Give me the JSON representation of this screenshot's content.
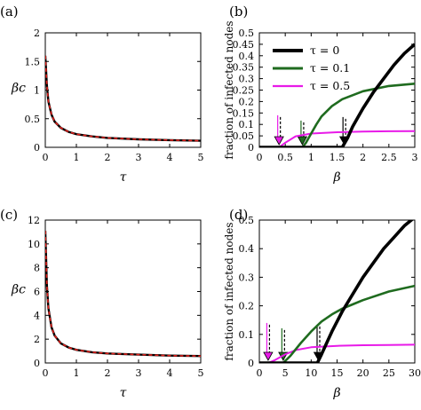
{
  "chart_data": [
    {
      "panel": "(a)",
      "type": "line",
      "xlabel": "τ",
      "ylabel": "βc",
      "xlim": [
        0,
        5
      ],
      "ylim": [
        0,
        2
      ],
      "xticks": [
        "0",
        "1",
        "2",
        "3",
        "4",
        "5"
      ],
      "yticks": [
        "0",
        "0.5",
        "1",
        "1.5",
        "2"
      ],
      "grid": false,
      "series": [
        {
          "style": "black-solid",
          "x": [
            0,
            0.05,
            0.1,
            0.2,
            0.3,
            0.5,
            0.75,
            1,
            1.5,
            2,
            3,
            4,
            5
          ],
          "y": [
            1.6,
            1.08,
            0.8,
            0.57,
            0.45,
            0.34,
            0.27,
            0.23,
            0.19,
            0.165,
            0.14,
            0.125,
            0.115
          ]
        },
        {
          "style": "red-dashed",
          "x": [
            0,
            0.05,
            0.1,
            0.2,
            0.3,
            0.5,
            0.75,
            1,
            1.5,
            2,
            3,
            4,
            5
          ],
          "y": [
            1.6,
            1.08,
            0.8,
            0.57,
            0.45,
            0.34,
            0.27,
            0.23,
            0.19,
            0.165,
            0.14,
            0.125,
            0.115
          ]
        }
      ]
    },
    {
      "panel": "(b)",
      "type": "line",
      "xlabel": "β",
      "ylabel": "fraction of infected nodes",
      "xlim": [
        0,
        3
      ],
      "ylim": [
        0,
        0.5
      ],
      "xticks": [
        "0",
        "0.5",
        "1",
        "1.5",
        "2",
        "2.5",
        "3"
      ],
      "yticks": [
        "0",
        "0.05",
        "0.1",
        "0.15",
        "0.2",
        "0.25",
        "0.3",
        "0.35",
        "0.4",
        "0.45",
        "0.5"
      ],
      "legend_position": "top-left",
      "series": [
        {
          "name": "τ = 0",
          "color": "#000000",
          "x": [
            0,
            1.6,
            1.7,
            1.8,
            1.9,
            2.0,
            2.2,
            2.4,
            2.6,
            2.8,
            3.0
          ],
          "y": [
            0,
            0,
            0.04,
            0.09,
            0.13,
            0.17,
            0.24,
            0.3,
            0.36,
            0.41,
            0.45
          ],
          "threshold": 1.64
        },
        {
          "name": "τ = 0.1",
          "color": "#1f6b1f",
          "x": [
            0,
            0.83,
            0.9,
            1.0,
            1.1,
            1.2,
            1.4,
            1.6,
            2.0,
            2.5,
            3.0
          ],
          "y": [
            0,
            0,
            0.02,
            0.06,
            0.1,
            0.135,
            0.18,
            0.21,
            0.245,
            0.268,
            0.278
          ],
          "threshold": 0.83
        },
        {
          "name": "τ = 0.5",
          "color": "#e81ae8",
          "x": [
            0,
            0.38,
            0.5,
            0.7,
            1.0,
            1.5,
            2.0,
            2.5,
            3.0
          ],
          "y": [
            0,
            0,
            0.02,
            0.048,
            0.06,
            0.066,
            0.069,
            0.07,
            0.071
          ],
          "threshold": 0.38
        }
      ]
    },
    {
      "panel": "(c)",
      "type": "line",
      "xlabel": "τ",
      "ylabel": "βc",
      "xlim": [
        0,
        5
      ],
      "ylim": [
        0,
        12
      ],
      "xticks": [
        "0",
        "1",
        "2",
        "3",
        "4",
        "5"
      ],
      "yticks": [
        "0",
        "2",
        "4",
        "6",
        "8",
        "10",
        "12"
      ],
      "grid": false,
      "series": [
        {
          "style": "black-solid",
          "x": [
            0,
            0.05,
            0.1,
            0.2,
            0.3,
            0.5,
            0.75,
            1,
            1.5,
            2,
            3,
            4,
            5
          ],
          "y": [
            11.1,
            6.5,
            4.6,
            3.0,
            2.3,
            1.65,
            1.3,
            1.1,
            0.9,
            0.8,
            0.7,
            0.62,
            0.58
          ]
        },
        {
          "style": "red-dashed",
          "x": [
            0,
            0.05,
            0.1,
            0.2,
            0.3,
            0.5,
            0.75,
            1,
            1.5,
            2,
            3,
            4,
            5
          ],
          "y": [
            11.1,
            6.5,
            4.6,
            3.0,
            2.3,
            1.65,
            1.3,
            1.1,
            0.9,
            0.8,
            0.7,
            0.62,
            0.58
          ]
        }
      ]
    },
    {
      "panel": "(d)",
      "type": "line",
      "xlabel": "β",
      "ylabel": "fraction of infected nodes",
      "xlim": [
        0,
        30
      ],
      "ylim": [
        0,
        0.5
      ],
      "xticks": [
        "0",
        "5",
        "10",
        "15",
        "20",
        "25",
        "30"
      ],
      "yticks": [
        "0",
        "0.1",
        "0.2",
        "0.3",
        "0.4",
        "0.5"
      ],
      "series": [
        {
          "name": "τ = 0",
          "color": "#000000",
          "x": [
            0,
            11.2,
            12,
            13,
            14,
            16,
            18,
            20,
            22,
            24,
            26,
            28,
            30
          ],
          "y": [
            0,
            0,
            0.03,
            0.07,
            0.11,
            0.18,
            0.24,
            0.3,
            0.35,
            0.4,
            0.44,
            0.48,
            0.51
          ],
          "threshold": 11.4
        },
        {
          "name": "τ = 0.1",
          "color": "#1f6b1f",
          "x": [
            0,
            4.6,
            6,
            8,
            10,
            12,
            14,
            16,
            18,
            20,
            25,
            30
          ],
          "y": [
            0,
            0,
            0.025,
            0.07,
            0.11,
            0.145,
            0.17,
            0.19,
            0.205,
            0.22,
            0.25,
            0.27
          ],
          "threshold": 4.6
        },
        {
          "name": "τ = 0.5",
          "color": "#e81ae8",
          "x": [
            0,
            1.7,
            3,
            5,
            7,
            10,
            15,
            20,
            25,
            30
          ],
          "y": [
            0,
            0,
            0.01,
            0.03,
            0.045,
            0.055,
            0.06,
            0.062,
            0.063,
            0.064
          ],
          "threshold": 1.7
        }
      ]
    }
  ]
}
